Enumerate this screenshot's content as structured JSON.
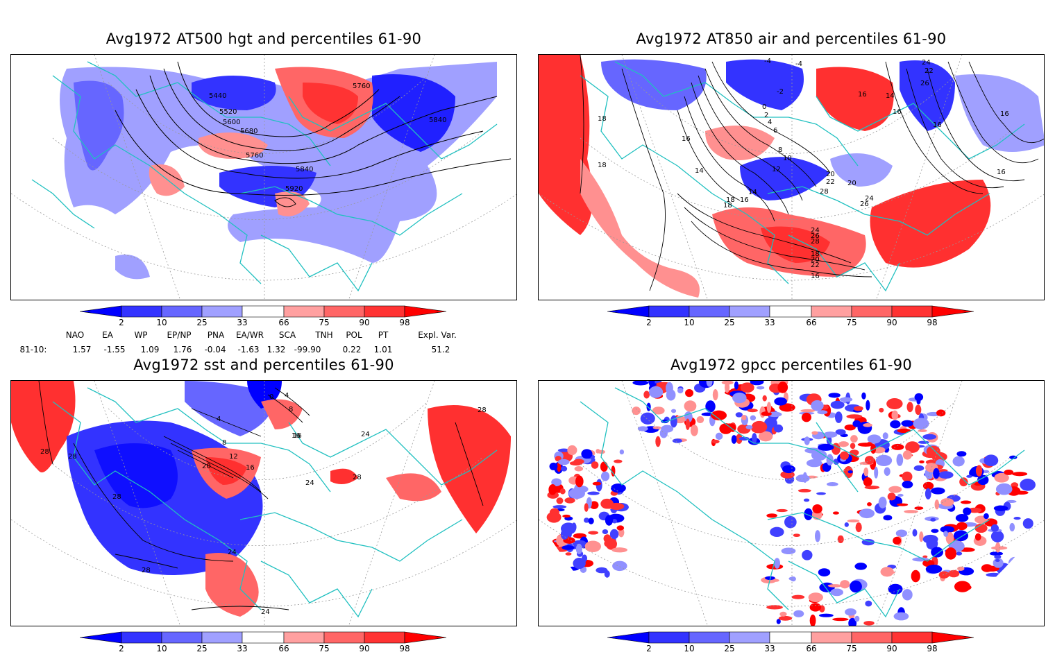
{
  "panels": [
    {
      "id": "p1",
      "title": "Avg1972 AT500 hgt and percentiles 61-90",
      "contour_labels": [
        "5440",
        "5760",
        "5520",
        "5600",
        "5680",
        "5840",
        "5760",
        "5840",
        "5920"
      ]
    },
    {
      "id": "p2",
      "title": "Avg1972 AT850 air and percentiles 61-90",
      "contour_labels": [
        "-4",
        "-4",
        "-2",
        "0",
        "2",
        "4",
        "6",
        "8",
        "10",
        "12",
        "14",
        "16",
        "18",
        "18",
        "16",
        "14",
        "16",
        "20",
        "22",
        "24",
        "26",
        "28",
        "18",
        "16",
        "14",
        "16",
        "18",
        "20",
        "22",
        "24",
        "26",
        "28",
        "16",
        "16",
        "16",
        "18",
        "20",
        "24",
        "22",
        "26"
      ]
    },
    {
      "id": "p3",
      "title": "Avg1972 sst and percentiles 61-90",
      "contour_labels": [
        "28",
        "28",
        "28",
        "24",
        "28",
        "4",
        "8",
        "12",
        "16",
        "20",
        "16",
        "24",
        "28",
        "24",
        "28",
        "0",
        "4",
        "8",
        "16",
        "24"
      ]
    },
    {
      "id": "p4",
      "title": "Avg1972 gpcc percentiles 61-90",
      "contour_labels": []
    }
  ],
  "colorbar": {
    "labels": [
      "2",
      "10",
      "25",
      "33",
      "66",
      "75",
      "90",
      "98"
    ],
    "colors": {
      "c1": "#0000ff",
      "c2": "#3333ff",
      "c3": "#6666ff",
      "c4": "#a0a0ff",
      "c5": "#ffffff",
      "c6": "#ffa0a0",
      "c7": "#ff6666",
      "c8": "#ff3333",
      "c9": "#ff0000"
    }
  },
  "indices": {
    "headers": [
      "NAO",
      "EA",
      "WP",
      "EP/NP",
      "PNA",
      "EA/WR",
      "SCA",
      "TNH",
      "POL",
      "PT",
      "Expl. Var."
    ],
    "row_label": "81-10:",
    "values": [
      "1.57",
      "-1.55",
      "1.09",
      "1.76",
      "-0.04",
      "-1.63",
      "1.32",
      "-99.90",
      "0.22",
      "1.01",
      "51.2"
    ]
  },
  "map_colors": {
    "coast": "#20c0c0",
    "grid": "#999999",
    "contour": "#000000",
    "blue": "#4040ff",
    "lblue": "#9090ff",
    "red": "#ff3030",
    "lred": "#ff9090"
  }
}
